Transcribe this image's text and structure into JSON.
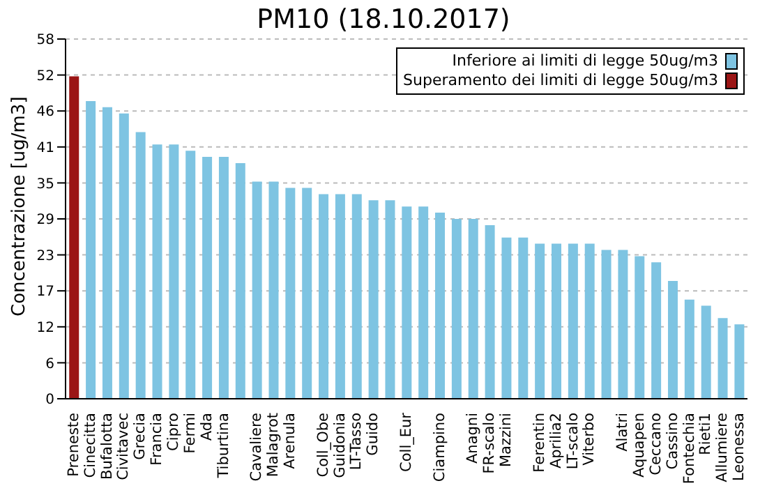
{
  "chart_data": {
    "type": "bar",
    "title": "PM10 (18.10.2017)",
    "ylabel": "Concentrazione [ug/m3]",
    "categories": [
      "Preneste",
      "Cinecitta",
      "Bufalotta",
      "Civitavec",
      "Grecia",
      "Francia",
      "Cipro",
      "Fermi",
      "Ada",
      "Tiburtina",
      null,
      "Cavaliere",
      "Malagrot",
      "Arenula",
      null,
      "Coll_Obe",
      "Guidonia",
      "LT-Tasso",
      "Guido",
      null,
      "Coll_Eur",
      null,
      "Ciampino",
      null,
      "Anagni",
      "FR-scalo",
      "Mazzini",
      null,
      "Ferentin",
      "Aprilia2",
      "LT-scalo",
      "Viterbo",
      null,
      "Alatri",
      "Aquapen",
      "Ceccano",
      "Cassino",
      "Fontechia",
      "Rieti1",
      "Allumiere",
      "Leonessa"
    ],
    "series": [
      {
        "name": "Inferiore ai limiti di legge 50ug/m3",
        "color": "#7ec4e2",
        "values": [
          null,
          48,
          47,
          46,
          43,
          41,
          41,
          40,
          39,
          39,
          38,
          35,
          35,
          34,
          34,
          33,
          33,
          33,
          32,
          32,
          31,
          31,
          30,
          29,
          29,
          28,
          26,
          26,
          25,
          25,
          25,
          25,
          24,
          24,
          23,
          22,
          19,
          16,
          15,
          13,
          12
        ]
      },
      {
        "name": "Superamento dei limiti di legge 50ug/m3",
        "color": "#9b1515",
        "values": [
          52,
          null,
          null,
          null,
          null,
          null,
          null,
          null,
          null,
          null,
          null,
          null,
          null,
          null,
          null,
          null,
          null,
          null,
          null,
          null,
          null,
          null,
          null,
          null,
          null,
          null,
          null,
          null,
          null,
          null,
          null,
          null,
          null,
          null,
          null,
          null,
          null,
          null,
          null,
          null,
          null
        ]
      }
    ],
    "stacked": true,
    "ylim": [
      0,
      58
    ],
    "yticks": [
      0,
      {
        "value": 5.8,
        "label": "6"
      },
      {
        "value": 11.6,
        "label": "12"
      },
      {
        "value": 17.4,
        "label": "17"
      },
      {
        "value": 23.2,
        "label": "23"
      },
      29,
      {
        "value": 34.8,
        "label": "35"
      },
      {
        "value": 40.6,
        "label": "41"
      },
      {
        "value": 46.4,
        "label": "46"
      },
      {
        "value": 52.2,
        "label": "52"
      },
      58
    ],
    "grid": "y",
    "legend": "top right"
  }
}
